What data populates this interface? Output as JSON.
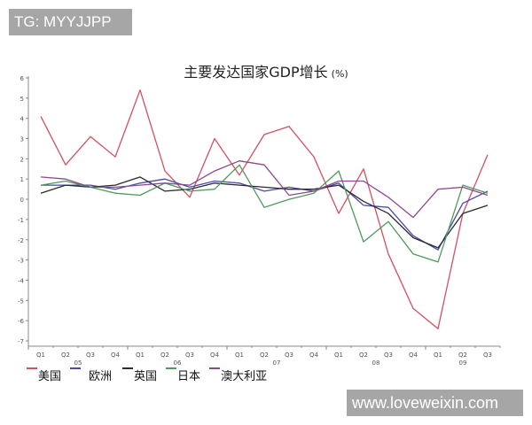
{
  "watermarks": {
    "top_left": "TG: MYYJJPP",
    "bottom_right": "www.loveweixin.com"
  },
  "chart_data": {
    "type": "line",
    "title": "主要发达国家GDP增长",
    "title_unit": "(%)",
    "xlabel": "",
    "ylabel": "",
    "ylim": [
      -7,
      6
    ],
    "yticks": [
      6,
      5,
      4,
      3,
      2,
      1,
      0,
      -1,
      -2,
      -3,
      -4,
      -5,
      -6,
      -7
    ],
    "grid": false,
    "legend_position": "bottom-left",
    "categories": [
      "Q1",
      "Q2",
      "Q3",
      "Q4",
      "Q1",
      "Q2",
      "Q3",
      "Q4",
      "Q1",
      "Q2",
      "Q3",
      "Q4",
      "Q1",
      "Q2",
      "Q3",
      "Q4",
      "Q1",
      "Q2",
      "Q3"
    ],
    "year_labels": [
      {
        "label": "05",
        "index": 1.5
      },
      {
        "label": "06",
        "index": 5.5
      },
      {
        "label": "07",
        "index": 9.5
      },
      {
        "label": "08",
        "index": 13.5
      },
      {
        "label": "09",
        "index": 17
      }
    ],
    "series": [
      {
        "name": "美国",
        "color": "#d2505f",
        "values": [
          4.1,
          1.7,
          3.1,
          2.1,
          5.4,
          1.4,
          0.1,
          3.0,
          1.2,
          3.2,
          3.6,
          2.1,
          -0.7,
          1.5,
          -2.7,
          -5.4,
          -6.4,
          -0.7,
          2.2
        ]
      },
      {
        "name": "欧洲",
        "color": "#4a4aa8",
        "values": [
          0.7,
          0.7,
          0.7,
          0.5,
          0.8,
          1.0,
          0.6,
          0.9,
          0.8,
          0.4,
          0.6,
          0.4,
          0.8,
          -0.3,
          -0.4,
          -1.8,
          -2.5,
          -0.2,
          0.4
        ]
      },
      {
        "name": "英国",
        "color": "#2a2a2a",
        "values": [
          0.3,
          0.7,
          0.6,
          0.7,
          1.1,
          0.4,
          0.5,
          0.8,
          0.7,
          0.6,
          0.5,
          0.5,
          0.7,
          -0.1,
          -0.7,
          -1.9,
          -2.4,
          -0.7,
          -0.3
        ]
      },
      {
        "name": "日本",
        "color": "#4e9a5a",
        "values": [
          0.7,
          0.9,
          0.6,
          0.3,
          0.2,
          0.8,
          0.4,
          0.5,
          1.7,
          -0.4,
          0.0,
          0.3,
          1.4,
          -2.1,
          -1.1,
          -2.7,
          -3.1,
          0.7,
          0.3
        ]
      },
      {
        "name": "澳大利亚",
        "color": "#8a4a8a",
        "values": [
          1.1,
          1.0,
          0.6,
          0.6,
          0.7,
          0.8,
          0.7,
          1.4,
          1.9,
          1.7,
          0.2,
          0.4,
          0.9,
          0.9,
          0.1,
          -0.9,
          0.5,
          0.6,
          0.2
        ]
      }
    ]
  }
}
